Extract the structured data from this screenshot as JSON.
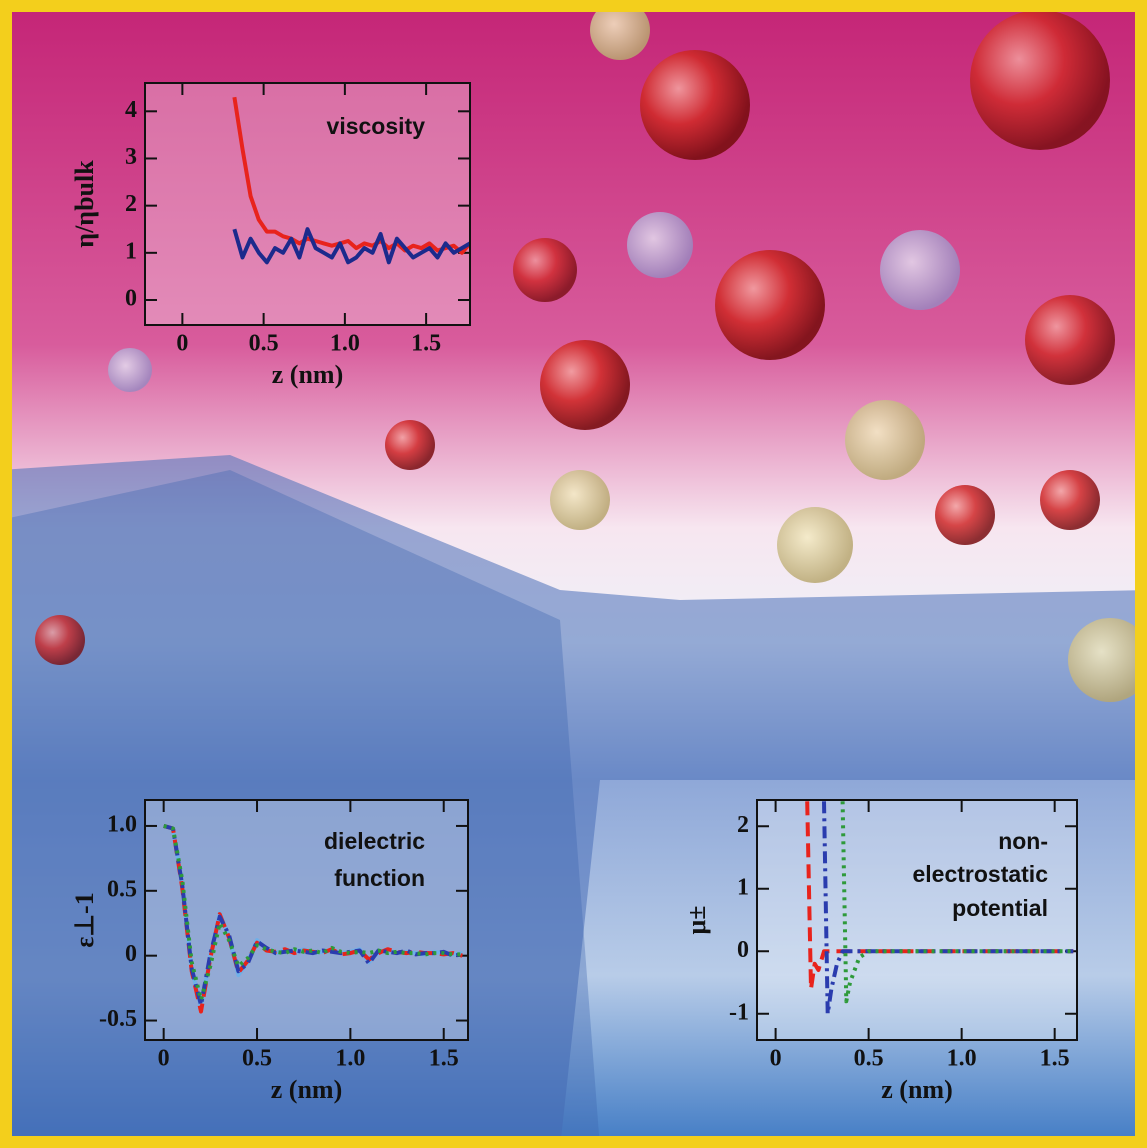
{
  "chart_data": [
    {
      "type": "line",
      "annotation": "viscosity",
      "xlabel": "z (nm)",
      "ylabel": "η/ηbulk",
      "x": [
        0.32,
        0.37,
        0.42,
        0.47,
        0.52,
        0.57,
        0.62,
        0.67,
        0.72,
        0.77,
        0.82,
        0.87,
        0.92,
        0.97,
        1.02,
        1.07,
        1.12,
        1.17,
        1.22,
        1.27,
        1.32,
        1.37,
        1.42,
        1.47,
        1.52,
        1.57,
        1.62,
        1.67,
        1.72,
        1.77
      ],
      "series": [
        {
          "color": "#e8231c",
          "dash": "solid",
          "values": [
            4.3,
            3.2,
            2.2,
            1.7,
            1.45,
            1.45,
            1.35,
            1.3,
            1.2,
            1.3,
            1.25,
            1.2,
            1.15,
            1.2,
            1.25,
            1.1,
            1.2,
            1.15,
            1.25,
            1.1,
            1.2,
            1.05,
            1.15,
            1.1,
            1.2,
            1.05,
            1.1,
            1.15,
            1.0,
            1.2
          ]
        },
        {
          "color": "#1c2a8c",
          "dash": "solid",
          "values": [
            1.5,
            0.9,
            1.3,
            1.0,
            0.8,
            1.1,
            1.0,
            1.3,
            0.9,
            1.5,
            1.1,
            1.0,
            0.9,
            1.2,
            0.8,
            0.9,
            1.1,
            1.0,
            1.4,
            0.8,
            1.3,
            1.1,
            0.9,
            1.0,
            1.1,
            0.9,
            1.2,
            1.0,
            1.1,
            1.2
          ]
        }
      ],
      "xlim": [
        -0.23,
        1.77
      ],
      "ylim": [
        -0.53,
        4.6
      ],
      "xticks": [
        0,
        0.5,
        {
          "value": 1,
          "label": "1.0"
        },
        1.5
      ],
      "yticks": [
        0,
        1,
        2,
        3,
        4
      ]
    },
    {
      "type": "line",
      "annotation": [
        "dielectric",
        "function"
      ],
      "xlabel": "z (nm)",
      "ylabel": "ε⊥-1",
      "x": [
        0,
        0.05,
        0.1,
        0.15,
        0.2,
        0.25,
        0.3,
        0.35,
        0.4,
        0.45,
        0.5,
        0.55,
        0.6,
        0.65,
        0.7,
        0.75,
        0.8,
        0.85,
        0.9,
        0.95,
        1.0,
        1.05,
        1.1,
        1.15,
        1.2,
        1.25,
        1.3,
        1.35,
        1.4,
        1.45,
        1.5,
        1.55,
        1.6
      ],
      "series": [
        {
          "color": "#6fb0e8",
          "dash": "solid",
          "values": [
            1,
            0.98,
            0.55,
            -0.1,
            -0.4,
            0.0,
            0.33,
            0.15,
            -0.15,
            -0.05,
            0.12,
            0.05,
            0.02,
            0.04,
            0.03,
            0.05,
            0.02,
            0.03,
            0.04,
            0.02,
            0.03,
            0.05,
            -0.05,
            0.03,
            0.04,
            0.02,
            0.03,
            0.02,
            0.01,
            0.03,
            0.02,
            0.01,
            0.02
          ]
        },
        {
          "color": "#e8231c",
          "dash": "dashed",
          "values": [
            1,
            0.98,
            0.52,
            -0.12,
            -0.43,
            -0.02,
            0.32,
            0.14,
            -0.13,
            -0.04,
            0.1,
            0.04,
            0.03,
            0.05,
            0.02,
            0.04,
            0.03,
            0.02,
            0.05,
            0.01,
            0.02,
            0.04,
            -0.03,
            0.02,
            0.05,
            0.03,
            0.02,
            0.03,
            0.02,
            0.02,
            0.01,
            0.02,
            0.0
          ]
        },
        {
          "color": "#2a3cae",
          "dash": "dashdot",
          "values": [
            1,
            0.98,
            0.54,
            -0.1,
            -0.38,
            0.01,
            0.3,
            0.16,
            -0.12,
            -0.06,
            0.11,
            0.06,
            0.02,
            0.03,
            0.04,
            0.03,
            0.02,
            0.04,
            0.03,
            0.02,
            0.03,
            0.04,
            -0.06,
            0.04,
            0.03,
            0.02,
            0.04,
            0.01,
            0.02,
            0.02,
            0.03,
            0.0,
            0.01
          ]
        },
        {
          "color": "#2e9a3a",
          "dash": "dotted",
          "values": [
            1,
            0.98,
            0.58,
            -0.05,
            -0.34,
            -0.08,
            0.25,
            0.12,
            -0.08,
            -0.02,
            0.08,
            0.05,
            0.03,
            0.02,
            0.05,
            0.03,
            0.04,
            0.02,
            0.06,
            0.03,
            0.02,
            0.03,
            0.02,
            0.04,
            0.02,
            0.03,
            0.02,
            0.02,
            0.01,
            0.02,
            0.02,
            0.01,
            0.01
          ]
        }
      ],
      "xlim": [
        -0.1,
        1.63
      ],
      "ylim": [
        -0.65,
        1.2
      ],
      "xticks": [
        0,
        0.5,
        {
          "value": 1,
          "label": "1.0"
        },
        1.5
      ],
      "yticks": [
        {
          "value": 1,
          "label": "1.0"
        },
        0.5,
        0,
        -0.5
      ]
    },
    {
      "type": "line",
      "annotation": [
        "non-",
        "electrostatic",
        "potential"
      ],
      "xlabel": "z (nm)",
      "ylabel": "μ±",
      "x": [
        0.17,
        0.19,
        0.21,
        0.23,
        0.26,
        0.28,
        0.3,
        0.33,
        0.36,
        0.38,
        0.4,
        0.45,
        0.5,
        1.0,
        1.6
      ],
      "series": [
        {
          "color": "#e8231c",
          "dash": "dashed",
          "values": [
            2.4,
            -0.6,
            -0.2,
            -0.3,
            0,
            0,
            0,
            0,
            0,
            0,
            0,
            0,
            0,
            0,
            0
          ]
        },
        {
          "color": "#2a3cae",
          "dash": "dashdot",
          "values": [
            null,
            null,
            null,
            null,
            2.4,
            -1.0,
            -0.6,
            -0.2,
            0,
            0,
            0,
            0,
            0,
            0,
            0
          ]
        },
        {
          "color": "#2e9a3a",
          "dash": "dotted",
          "values": [
            null,
            null,
            null,
            null,
            null,
            null,
            null,
            null,
            2.4,
            -0.8,
            -0.5,
            -0.1,
            0,
            0,
            0
          ]
        }
      ],
      "xlim": [
        -0.1,
        1.62
      ],
      "ylim": [
        -1.42,
        2.42
      ],
      "xticks": [
        0,
        0.5,
        {
          "value": 1,
          "label": "1.0"
        },
        1.5
      ],
      "yticks": [
        2,
        1,
        0,
        -1
      ]
    }
  ]
}
